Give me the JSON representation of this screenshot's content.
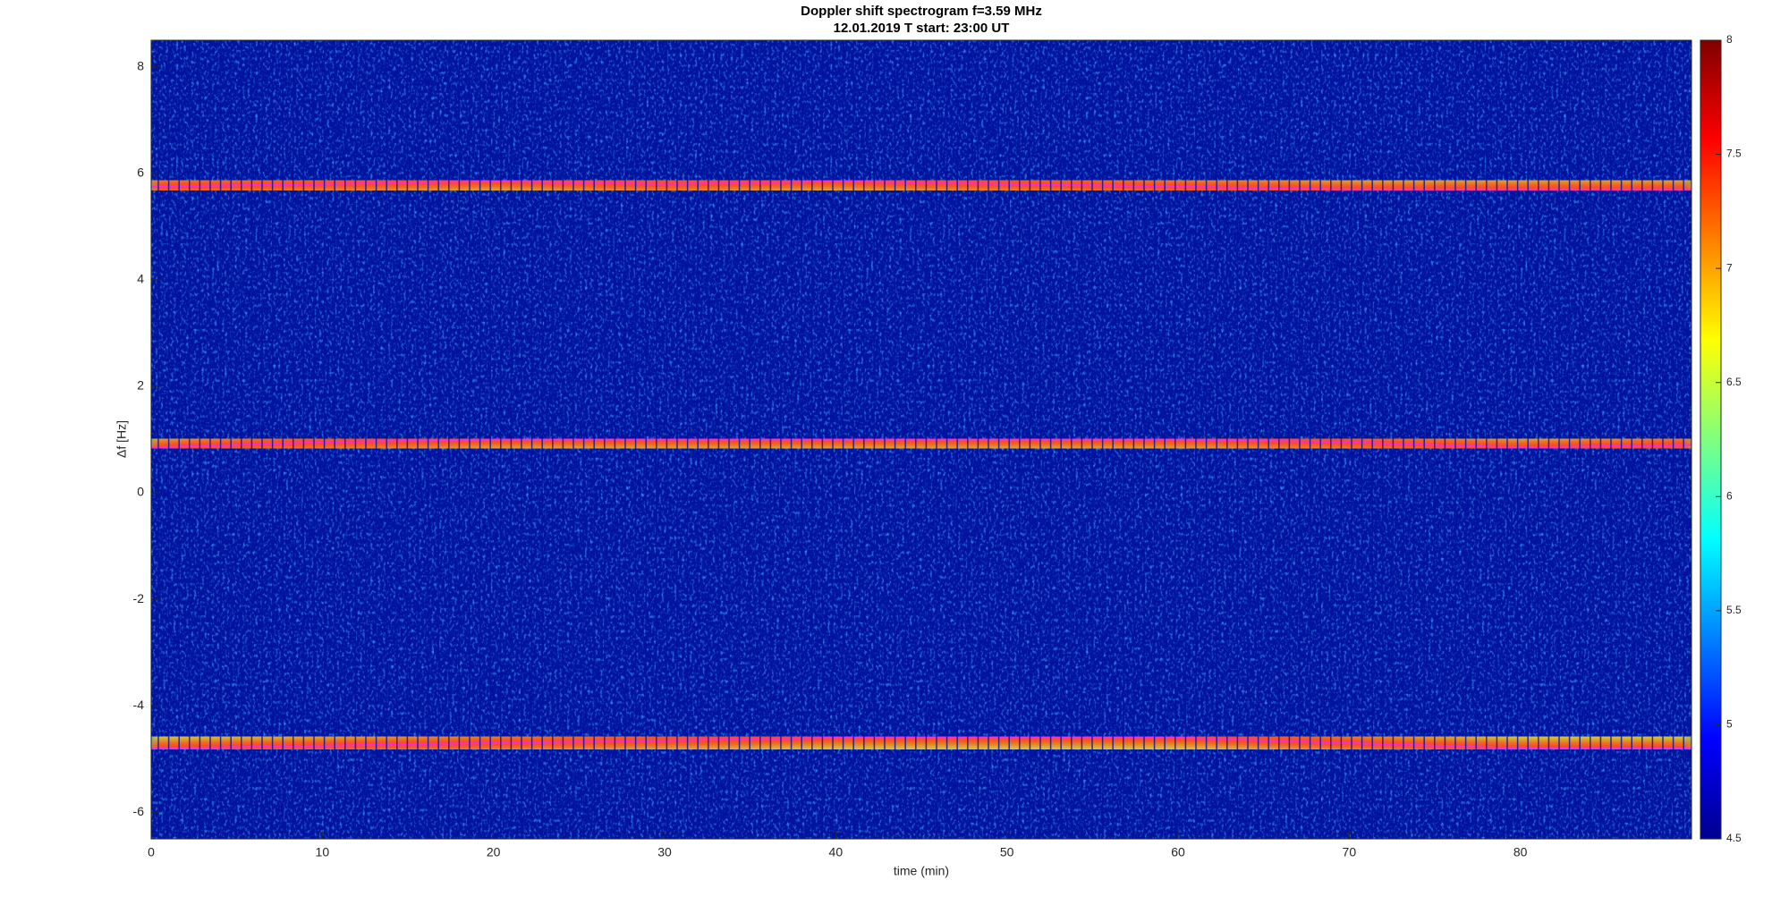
{
  "chart_data": {
    "type": "spectrogram",
    "title": "Doppler shift spectrogram f=3.59 MHz",
    "subtitle": "12.01.2019    T start: 23:00 UT",
    "x_label": "time (min)",
    "y_label": "Δf [Hz]",
    "xlim": [
      0,
      90
    ],
    "xticks": [
      0,
      10,
      20,
      30,
      40,
      50,
      60,
      70,
      80
    ],
    "ylim": [
      -6.5,
      8.5
    ],
    "yticks": [
      -6,
      -4,
      -2,
      0,
      2,
      4,
      6,
      8
    ],
    "clim": [
      4.5,
      8
    ],
    "cticks": [
      4.5,
      5,
      5.5,
      6,
      6.5,
      7,
      7.5,
      8
    ],
    "series": [
      {
        "color": "#ff2bd0",
        "x": [
          0,
          10,
          20,
          30,
          40,
          50,
          60,
          70,
          80,
          90
        ],
        "values": [
          5.75,
          5.8,
          5.85,
          5.8,
          5.85,
          5.8,
          5.75,
          5.7,
          5.7,
          5.7
        ]
      },
      {
        "color": "#ff2bd0",
        "x": [
          0,
          10,
          20,
          30,
          40,
          50,
          60,
          70,
          80,
          90
        ],
        "values": [
          0.85,
          0.95,
          1.0,
          1.0,
          1.0,
          1.0,
          1.0,
          0.95,
          0.85,
          0.9
        ]
      },
      {
        "color": "#ff2bd0",
        "x": [
          0,
          10,
          20,
          30,
          40,
          50,
          60,
          70,
          80,
          90
        ],
        "values": [
          -4.8,
          -4.75,
          -4.7,
          -4.65,
          -4.6,
          -4.6,
          -4.6,
          -4.7,
          -4.8,
          -4.8
        ]
      }
    ]
  }
}
